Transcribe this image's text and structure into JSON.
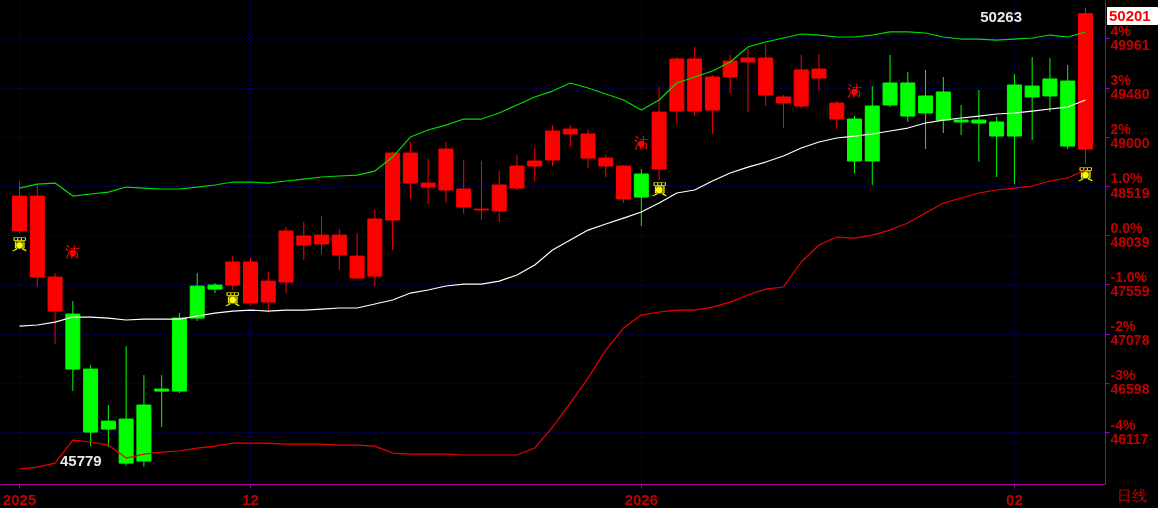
{
  "chart_data": {
    "type": "candlestick",
    "categories": [
      "2025",
      null,
      null,
      null,
      null,
      null,
      null,
      null,
      null,
      null,
      null,
      null,
      null,
      "12",
      null,
      null,
      null,
      null,
      null,
      null,
      null,
      null,
      null,
      null,
      null,
      null,
      null,
      null,
      null,
      null,
      null,
      null,
      null,
      null,
      null,
      "2026",
      null,
      null,
      null,
      null,
      null,
      null,
      null,
      null,
      null,
      null,
      null,
      null,
      null,
      null,
      null,
      null,
      null,
      null,
      null,
      null,
      "02",
      null,
      null,
      null,
      null
    ],
    "ohlc": [
      [
        48080,
        48568,
        48060,
        48421
      ],
      [
        47630,
        48529,
        47533,
        48421
      ],
      [
        47298,
        47669,
        46976,
        47630
      ],
      [
        47269,
        47396,
        46517,
        46732
      ],
      [
        46732,
        46771,
        45980,
        46117
      ],
      [
        46224,
        46381,
        45970,
        46146
      ],
      [
        46244,
        46957,
        45790,
        45814
      ],
      [
        46381,
        46673,
        45779,
        45834
      ],
      [
        46537,
        46673,
        46166,
        46517
      ],
      [
        47230,
        47279,
        46498,
        46517
      ],
      [
        47542,
        47669,
        47201,
        47230
      ],
      [
        47552,
        47572,
        47474,
        47513
      ],
      [
        47552,
        47835,
        47503,
        47777
      ],
      [
        47377,
        47816,
        47347,
        47777
      ],
      [
        47387,
        47679,
        47298,
        47591
      ],
      [
        47582,
        48119,
        47474,
        48080
      ],
      [
        47943,
        48167,
        47796,
        48031
      ],
      [
        47953,
        48226,
        47855,
        48040
      ],
      [
        47845,
        48099,
        47699,
        48040
      ],
      [
        47621,
        48060,
        47611,
        47835
      ],
      [
        47640,
        48285,
        47542,
        48197
      ],
      [
        48187,
        48851,
        47894,
        48841
      ],
      [
        48548,
        48949,
        48392,
        48841
      ],
      [
        48509,
        48783,
        48343,
        48548
      ],
      [
        48480,
        48949,
        48353,
        48880
      ],
      [
        48314,
        48773,
        48246,
        48490
      ],
      [
        48285,
        48763,
        48187,
        48294
      ],
      [
        48275,
        48665,
        48167,
        48529
      ],
      [
        48499,
        48822,
        48480,
        48714
      ],
      [
        48714,
        48890,
        48568,
        48763
      ],
      [
        48773,
        49114,
        48714,
        49056
      ],
      [
        49027,
        49114,
        48900,
        49075
      ],
      [
        48792,
        49075,
        48695,
        49027
      ],
      [
        48714,
        48822,
        48607,
        48792
      ],
      [
        48392,
        48724,
        48353,
        48714
      ],
      [
        48636,
        48685,
        48128,
        48411
      ],
      [
        48685,
        49486,
        48577,
        49241
      ],
      [
        49251,
        49778,
        49124,
        49759
      ],
      [
        49251,
        49876,
        49202,
        49759
      ],
      [
        49261,
        49603,
        49027,
        49583
      ],
      [
        49583,
        49798,
        49427,
        49739
      ],
      [
        49730,
        49857,
        49241,
        49769
      ],
      [
        49407,
        49905,
        49300,
        49769
      ],
      [
        49329,
        49407,
        49085,
        49388
      ],
      [
        49300,
        49798,
        49280,
        49652
      ],
      [
        49573,
        49808,
        49446,
        49661
      ],
      [
        49173,
        49349,
        49075,
        49329
      ],
      [
        49173,
        49202,
        48646,
        48763
      ],
      [
        49300,
        49495,
        48529,
        48763
      ],
      [
        49525,
        49798,
        49290,
        49310
      ],
      [
        49525,
        49632,
        49144,
        49202
      ],
      [
        49398,
        49652,
        48880,
        49232
      ],
      [
        49437,
        49583,
        49036,
        49163
      ],
      [
        49163,
        49310,
        49017,
        49144
      ],
      [
        49163,
        49456,
        48753,
        49134
      ],
      [
        49144,
        49193,
        48607,
        49007
      ],
      [
        49505,
        49612,
        48538,
        49007
      ],
      [
        49495,
        49778,
        48968,
        49388
      ],
      [
        49564,
        49769,
        49241,
        49398
      ],
      [
        49544,
        49700,
        48880,
        48909
      ],
      [
        48880,
        50263,
        48734,
        50201
      ]
    ],
    "colors": [
      "#ff0000",
      "#ff0000",
      "#ff0000",
      "#00ff00",
      "#00ff00",
      "#00ff00",
      "#00ff00",
      "#00ff00",
      "#00ff00",
      "#00ff00",
      "#00ff00",
      "#00ff00",
      "#ff0000",
      "#ff0000",
      "#ff0000",
      "#ff0000",
      "#ff0000",
      "#ff0000",
      "#ff0000",
      "#ff0000",
      "#ff0000",
      "#ff0000",
      "#ff0000",
      "#ff0000",
      "#ff0000",
      "#ff0000",
      "#ff0000",
      "#ff0000",
      "#ff0000",
      "#ff0000",
      "#ff0000",
      "#ff0000",
      "#ff0000",
      "#ff0000",
      "#ff0000",
      "#00ff00",
      "#ff0000",
      "#ff0000",
      "#ff0000",
      "#ff0000",
      "#ff0000",
      "#ff0000",
      "#ff0000",
      "#ff0000",
      "#ff0000",
      "#ff0000",
      "#ff0000",
      "#00ff00",
      "#00ff00",
      "#00ff00",
      "#00ff00",
      "#00ff00",
      "#00ff00",
      "#00ff00",
      "#00ff00",
      "#00ff00",
      "#00ff00",
      "#00ff00",
      "#00ff00",
      "#00ff00",
      "#ff0000"
    ],
    "series": [
      {
        "type": "line",
        "color": "#00dd00",
        "values": [
          48499,
          48538,
          48548,
          48421,
          48441,
          48460,
          48509,
          48499,
          48490,
          48490,
          48509,
          48529,
          48558,
          48558,
          48548,
          48568,
          48587,
          48607,
          48617,
          48626,
          48665,
          48802,
          48997,
          49066,
          49114,
          49173,
          49173,
          49232,
          49310,
          49388,
          49446,
          49525,
          49476,
          49417,
          49359,
          49261,
          49359,
          49525,
          49583,
          49642,
          49730,
          49876,
          49925,
          49964,
          50003,
          49993,
          49974,
          49974,
          49993,
          50023,
          50023,
          50013,
          49974,
          49954,
          49954,
          49944,
          49954,
          49964,
          49993,
          49974,
          50023
        ]
      },
      {
        "type": "line",
        "color": "#ffffff",
        "values": [
          47152,
          47162,
          47191,
          47240,
          47240,
          47230,
          47211,
          47220,
          47220,
          47220,
          47250,
          47279,
          47298,
          47308,
          47298,
          47308,
          47308,
          47318,
          47328,
          47328,
          47367,
          47406,
          47474,
          47504,
          47543,
          47562,
          47562,
          47591,
          47650,
          47748,
          47894,
          47992,
          48089,
          48148,
          48206,
          48265,
          48353,
          48451,
          48480,
          48568,
          48646,
          48704,
          48753,
          48812,
          48890,
          48949,
          48988,
          49007,
          49027,
          49056,
          49085,
          49134,
          49163,
          49183,
          49202,
          49222,
          49232,
          49251,
          49271,
          49290,
          49359
        ]
      },
      {
        "type": "line",
        "color": "#ee0000",
        "values": [
          45756,
          45775,
          45814,
          46039,
          46020,
          45990,
          45863,
          45902,
          45922,
          45932,
          45961,
          45980,
          46010,
          46010,
          46010,
          46000,
          46000,
          46000,
          45990,
          45990,
          45980,
          45912,
          45902,
          45902,
          45902,
          45893,
          45893,
          45893,
          45893,
          45961,
          46166,
          46400,
          46644,
          46918,
          47132,
          47259,
          47289,
          47308,
          47308,
          47337,
          47386,
          47455,
          47513,
          47533,
          47777,
          47943,
          48021,
          48011,
          48040,
          48089,
          48158,
          48255,
          48353,
          48402,
          48451,
          48480,
          48499,
          48519,
          48568,
          48597,
          48675
        ]
      },
      {
        "type": "scatter",
        "name": "買",
        "color": "#ffff00",
        "values": [
          47940,
          null,
          null,
          null,
          null,
          null,
          null,
          null,
          null,
          null,
          null,
          null,
          47406,
          null,
          null,
          null,
          null,
          null,
          null,
          null,
          null,
          null,
          null,
          null,
          null,
          null,
          null,
          null,
          null,
          null,
          null,
          null,
          null,
          null,
          null,
          null,
          48480,
          null,
          null,
          null,
          null,
          null,
          null,
          null,
          null,
          null,
          null,
          null,
          null,
          null,
          null,
          null,
          null,
          null,
          null,
          null,
          null,
          null,
          null,
          null,
          48626
        ]
      },
      {
        "type": "scatter",
        "name": "沽",
        "color": "#ff0000",
        "values": [
          null,
          null,
          null,
          47865,
          null,
          null,
          null,
          null,
          null,
          null,
          null,
          null,
          null,
          null,
          null,
          null,
          null,
          null,
          null,
          null,
          null,
          null,
          null,
          null,
          null,
          null,
          null,
          null,
          null,
          null,
          null,
          null,
          null,
          null,
          null,
          48930,
          null,
          null,
          null,
          null,
          null,
          null,
          null,
          null,
          null,
          null,
          null,
          49437,
          null,
          null,
          null,
          null,
          null,
          null,
          null,
          null,
          null,
          null,
          null,
          null,
          null
        ]
      }
    ],
    "ylim": [
      45610,
      50335
    ],
    "yticks": [
      49961,
      49480,
      49000,
      48519,
      48039,
      47559,
      47078,
      46598,
      46117
    ],
    "y2lim": [
      -5.056,
      4.779
    ],
    "y2ticks": [
      {
        "value": 4,
        "label": "4%"
      },
      {
        "value": 3,
        "label": "3%"
      },
      {
        "value": 2,
        "label": "2%"
      },
      {
        "value": 1,
        "label": "1.0%"
      },
      {
        "value": 0,
        "label": "0.0%"
      },
      {
        "value": -1,
        "label": "-1.0%"
      },
      {
        "value": -2,
        "label": "-2%"
      },
      {
        "value": -3,
        "label": "-3%"
      },
      {
        "value": -4,
        "label": "-4%"
      }
    ],
    "grid": true,
    "annotations": [
      "50263",
      "45779",
      "50201",
      "日线"
    ]
  }
}
